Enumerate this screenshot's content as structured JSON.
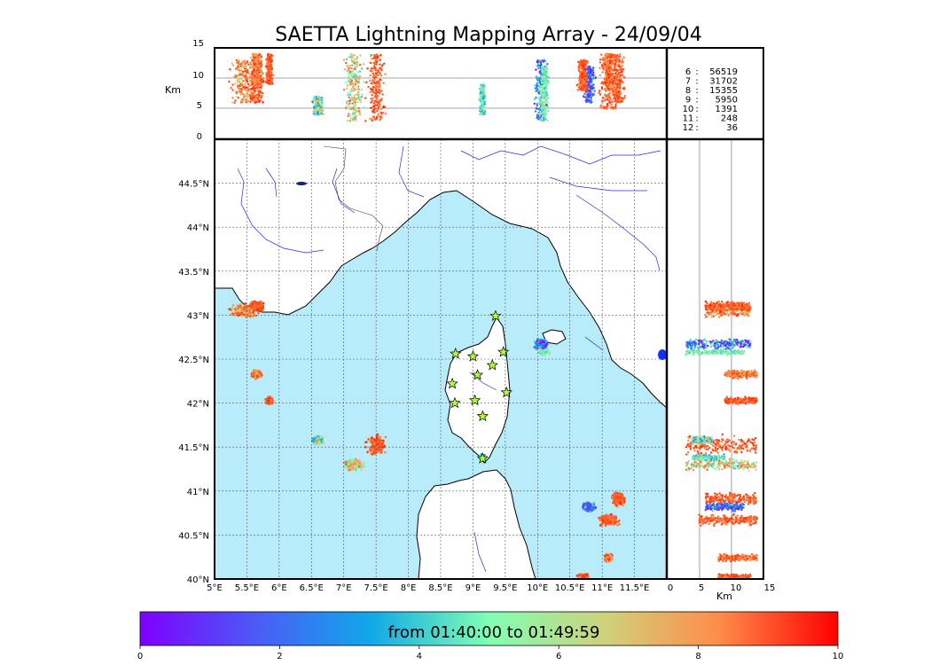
{
  "chart_data": {
    "type": "scatter",
    "title": "SAETTA Lightning Mapping Array - 24/09/04",
    "map": {
      "lon_range": [
        5,
        12
      ],
      "lat_range": [
        40,
        45
      ],
      "lon_ticks": [
        "5°E",
        "5.5°E",
        "6°E",
        "6.5°E",
        "7°E",
        "7.5°E",
        "8°E",
        "8.5°E",
        "9°E",
        "9.5°E",
        "10°E",
        "10.5°E",
        "11°E",
        "11.5°E"
      ],
      "lat_ticks": [
        "40°N",
        "40.5°N",
        "41°N",
        "41.5°N",
        "42°N",
        "42.5°N",
        "43°N",
        "43.5°N",
        "44°N",
        "44.5°N"
      ],
      "grid": "dashed",
      "sea_color": "#b8ecfb",
      "land_color": "#ffffff"
    },
    "altitude_panel": {
      "unit_label": "Km",
      "ticks": [
        "0",
        "5",
        "10",
        "15"
      ],
      "range": [
        0,
        15
      ]
    },
    "side_panel": {
      "unit_label": "Km",
      "ticks": [
        "0",
        "5",
        "10",
        "15"
      ],
      "range": [
        0,
        15
      ]
    },
    "counts": [
      {
        "label": "6",
        "value": "56519",
        "color": "#000000"
      },
      {
        "label": "7",
        "value": "31702",
        "color": "#ff0000"
      },
      {
        "label": "8",
        "value": "15355",
        "color": "#000000"
      },
      {
        "label": "9",
        "value": "5950",
        "color": "#000000"
      },
      {
        "label": "10",
        "value": "1391",
        "color": "#000000"
      },
      {
        "label": "11",
        "value": "248",
        "color": "#000000"
      },
      {
        "label": "12",
        "value": "36",
        "color": "#000000"
      }
    ],
    "colorbar": {
      "label": "from 01:40:00 to 01:49:59",
      "ticks": [
        "0",
        "2",
        "4",
        "6",
        "8",
        "10"
      ],
      "range": [
        0,
        10
      ]
    },
    "stations": [
      {
        "lon": 9.35,
        "lat": 42.99
      },
      {
        "lon": 8.73,
        "lat": 42.56
      },
      {
        "lon": 9.0,
        "lat": 42.53
      },
      {
        "lon": 9.47,
        "lat": 42.58
      },
      {
        "lon": 9.3,
        "lat": 42.43
      },
      {
        "lon": 9.07,
        "lat": 42.32
      },
      {
        "lon": 8.68,
        "lat": 42.22
      },
      {
        "lon": 9.52,
        "lat": 42.12
      },
      {
        "lon": 8.72,
        "lat": 42.0
      },
      {
        "lon": 9.03,
        "lat": 42.03
      },
      {
        "lon": 9.15,
        "lat": 41.85
      },
      {
        "lon": 9.15,
        "lat": 41.37
      }
    ],
    "clusters": [
      {
        "lon": 5.45,
        "lat": 43.05,
        "dlon": 0.25,
        "dlat": 0.1,
        "tmin": 6,
        "tmax": 10,
        "zmin": 6,
        "zmax": 13
      },
      {
        "lon": 5.65,
        "lat": 43.1,
        "dlon": 0.15,
        "dlat": 0.07,
        "tmin": 8,
        "tmax": 10,
        "zmin": 6,
        "zmax": 13
      },
      {
        "lon": 5.65,
        "lat": 42.33,
        "dlon": 0.1,
        "dlat": 0.06,
        "tmin": 7,
        "tmax": 10,
        "zmin": 9,
        "zmax": 14
      },
      {
        "lon": 5.85,
        "lat": 42.03,
        "dlon": 0.07,
        "dlat": 0.05,
        "tmin": 8,
        "tmax": 10,
        "zmin": 9,
        "zmax": 14
      },
      {
        "lon": 7.5,
        "lat": 41.52,
        "dlon": 0.18,
        "dlat": 0.14,
        "tmin": 8,
        "tmax": 10,
        "zmin": 3,
        "zmax": 14
      },
      {
        "lon": 7.15,
        "lat": 41.3,
        "dlon": 0.2,
        "dlat": 0.08,
        "tmin": 4,
        "tmax": 9,
        "zmin": 3,
        "zmax": 14
      },
      {
        "lon": 6.6,
        "lat": 41.58,
        "dlon": 0.1,
        "dlat": 0.06,
        "tmin": 3,
        "tmax": 8,
        "zmin": 4,
        "zmax": 7
      },
      {
        "lon": 10.05,
        "lat": 42.67,
        "dlon": 0.12,
        "dlat": 0.08,
        "tmin": 0,
        "tmax": 5,
        "zmin": 3,
        "zmax": 13
      },
      {
        "lon": 10.1,
        "lat": 42.58,
        "dlon": 0.1,
        "dlat": 0.04,
        "tmin": 4,
        "tmax": 6,
        "zmin": 3,
        "zmax": 12
      },
      {
        "lon": 11.25,
        "lat": 40.91,
        "dlon": 0.12,
        "dlat": 0.1,
        "tmin": 8,
        "tmax": 10,
        "zmin": 6,
        "zmax": 14
      },
      {
        "lon": 11.1,
        "lat": 40.67,
        "dlon": 0.2,
        "dlat": 0.08,
        "tmin": 8,
        "tmax": 10,
        "zmin": 5,
        "zmax": 14
      },
      {
        "lon": 10.8,
        "lat": 40.82,
        "dlon": 0.12,
        "dlat": 0.06,
        "tmin": 0,
        "tmax": 5,
        "zmin": 6,
        "zmax": 12
      },
      {
        "lon": 11.1,
        "lat": 40.24,
        "dlon": 0.08,
        "dlat": 0.05,
        "tmin": 7,
        "tmax": 10,
        "zmin": 8,
        "zmax": 14
      },
      {
        "lon": 10.7,
        "lat": 40.03,
        "dlon": 0.1,
        "dlat": 0.03,
        "tmin": 8,
        "tmax": 10,
        "zmin": 8,
        "zmax": 13
      },
      {
        "lon": 9.15,
        "lat": 41.38,
        "dlon": 0.06,
        "dlat": 0.04,
        "tmin": 3,
        "tmax": 6,
        "zmin": 4,
        "zmax": 9
      }
    ]
  }
}
